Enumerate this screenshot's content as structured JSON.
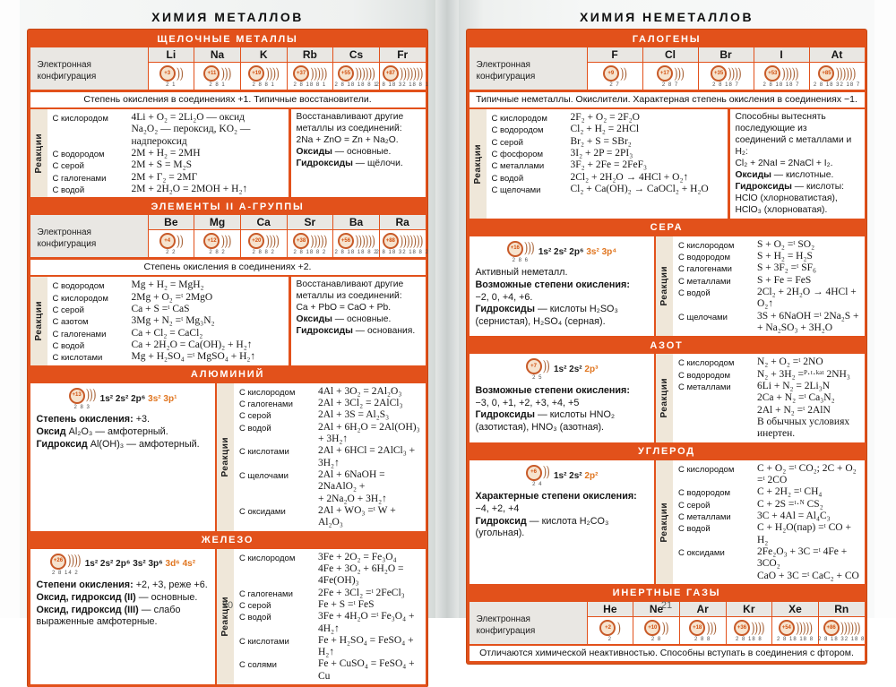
{
  "colors": {
    "accent": "#e2511b",
    "config_highlight": "#e0751f",
    "header_text": "#ffffff",
    "cell_gray": "#e9e7e3",
    "strip_beige": "#efe7d9"
  },
  "left_page": {
    "title": "ХИМИЯ МЕТАЛЛОВ",
    "page_number": "20",
    "config_label": "Электронная конфигурация",
    "reactions_label": "Реакции",
    "alkali": {
      "header": "ЩЕЛОЧНЫЕ МЕТАЛЛЫ",
      "elements": [
        {
          "symbol": "Li",
          "charge": "+3",
          "shells": "2 1"
        },
        {
          "symbol": "Na",
          "charge": "+11",
          "shells": "2 8 1"
        },
        {
          "symbol": "K",
          "charge": "+19",
          "shells": "2 8 8 1"
        },
        {
          "symbol": "Rb",
          "charge": "+37",
          "shells": "2 8 18 8 1"
        },
        {
          "symbol": "Cs",
          "charge": "+55",
          "shells": "2 8 18 18 8 1"
        },
        {
          "symbol": "Fr",
          "charge": "+87",
          "shells": "2 8 18 32 18 8 1"
        }
      ],
      "note": "Степень окисления в соединениях +1. Типичные восстановители.",
      "reactions": [
        {
          "label": "С кислородом",
          "eq": "4Li + O₂ = 2Li₂O — оксид\nNa₂O₂ — пероксид, KO₂ — надпероксид"
        },
        {
          "label": "С водородом",
          "eq": "2M + H₂ = 2MH"
        },
        {
          "label": "С серой",
          "eq": "2M + S = M₂S"
        },
        {
          "label": "С галогенами",
          "eq": "2M + Г₂ = 2МГ"
        },
        {
          "label": "С водой",
          "eq": "2M + 2H₂O = 2MOH + H₂↑"
        }
      ],
      "side": [
        {
          "bold": "",
          "rest": "Восстанавливают другие металлы из соединений:"
        },
        {
          "bold": "",
          "rest": "2Na + ZnO = Zn + Na₂O."
        },
        {
          "bold": "Оксиды",
          "rest": " — основные."
        },
        {
          "bold": "Гидроксиды",
          "rest": " — щёлочи."
        }
      ]
    },
    "group2": {
      "header": "ЭЛЕМЕНТЫ II А-ГРУППЫ",
      "elements": [
        {
          "symbol": "Be",
          "charge": "+4",
          "shells": "2 2"
        },
        {
          "symbol": "Mg",
          "charge": "+12",
          "shells": "2 8 2"
        },
        {
          "symbol": "Ca",
          "charge": "+20",
          "shells": "2 8 8 2"
        },
        {
          "symbol": "Sr",
          "charge": "+38",
          "shells": "2 8 18 8 2"
        },
        {
          "symbol": "Ba",
          "charge": "+56",
          "shells": "2 8 18 18 8 2"
        },
        {
          "symbol": "Ra",
          "charge": "+88",
          "shells": "2 8 18 32 18 8 2"
        }
      ],
      "note": "Степень окисления в соединениях +2.",
      "reactions": [
        {
          "label": "С водородом",
          "eq": "Mg + H₂ = MgH₂"
        },
        {
          "label": "С кислородом",
          "eq": "2Mg + O₂ =ᵗ 2MgO"
        },
        {
          "label": "С серой",
          "eq": "Ca + S =ᵗ CaS"
        },
        {
          "label": "С азотом",
          "eq": "3Mg + N₂ =ᵗ Mg₃N₂"
        },
        {
          "label": "С галогенами",
          "eq": "Ca + Cl₂ = CaCl₂"
        },
        {
          "label": "С водой",
          "eq": "Ca + 2H₂O = Ca(OH)₂ + H₂↑"
        },
        {
          "label": "С кислотами",
          "eq": "Mg + H₂SO₄ =ᵗ MgSO₄ + H₂↑"
        }
      ],
      "side": [
        {
          "bold": "",
          "rest": "Восстанавливают другие металлы из соединений:"
        },
        {
          "bold": "",
          "rest": "Ca + PbO = CaO + Pb."
        },
        {
          "bold": "Оксиды",
          "rest": " — основные."
        },
        {
          "bold": "Гидроксиды",
          "rest": " — основания."
        }
      ]
    },
    "aluminum": {
      "header": "АЛЮМИНИЙ",
      "diagram": {
        "charge": "+13",
        "shells": "2 8 3",
        "config_black": "1s² 2s² 2p⁶",
        "config_orange": "3s² 3p¹"
      },
      "info": [
        {
          "bold": "Степень окисления:",
          "rest": " +3."
        },
        {
          "bold": "Оксид",
          "rest": " Al₂O₃ — амфотерный."
        },
        {
          "bold": "Гидроксид",
          "rest": " Al(OH)₃ — амфотерный."
        }
      ],
      "reactions": [
        {
          "label": "С кислородом",
          "eq": "4Al + 3O₂ = 2Al₂O₃"
        },
        {
          "label": "С галогенами",
          "eq": "2Al + 3Cl₂ = 2AlCl₃"
        },
        {
          "label": "С серой",
          "eq": "2Al + 3S = Al₂S₃"
        },
        {
          "label": "С водой",
          "eq": "2Al + 6H₂O = 2Al(OH)₃ + 3H₂↑"
        },
        {
          "label": "С кислотами",
          "eq": "2Al + 6HCl = 2AlCl₃ + 3H₂↑"
        },
        {
          "label": "С щелочами",
          "eq": "2Al + 6NaOH = 2NaAlO₂ +\n+ 2Na₂O + 3H₂↑"
        },
        {
          "label": "С оксидами",
          "eq": "2Al + WO₃ =ᵗ W + Al₂O₃"
        }
      ]
    },
    "iron": {
      "header": "ЖЕЛЕЗО",
      "diagram": {
        "charge": "+26",
        "shells": "2 8 14 2",
        "config_black": "1s² 2s² 2p⁶ 3s² 3p⁶",
        "config_orange": "3d⁶ 4s²"
      },
      "info": [
        {
          "bold": "Степени окисления:",
          "rest": " +2, +3, реже +6."
        },
        {
          "bold": "Оксид, гидроксид (II)",
          "rest": " — основные."
        },
        {
          "bold": "Оксид, гидроксид (III)",
          "rest": " — слабо выраженные амфотерные."
        }
      ],
      "reactions": [
        {
          "label": "С кислородом",
          "eq": "3Fe + 2O₂ = Fe₃O₄\n4Fe + 3O₂ + 6H₂O = 4Fe(OH)₃"
        },
        {
          "label": "С галогенами",
          "eq": "2Fe + 3Cl₂ =ᵗ 2FeCl₃"
        },
        {
          "label": "С серой",
          "eq": "Fe + S =ᵗ FeS"
        },
        {
          "label": "С водой",
          "eq": "3Fe + 4H₂O =ᵗ Fe₃O₄ + 4H₂↑"
        },
        {
          "label": "С кислотами",
          "eq": "Fe + H₂SO₄ = FeSO₄ + H₂↑"
        },
        {
          "label": "С солями",
          "eq": "Fe + CuSO₄ = FeSO₄ + Cu"
        }
      ]
    }
  },
  "right_page": {
    "title": "ХИМИЯ НЕМЕТАЛЛОВ",
    "page_number": "21",
    "config_label": "Электронная конфигурация",
    "reactions_label": "Реакции",
    "halogens": {
      "header": "ГАЛОГЕНЫ",
      "elements": [
        {
          "symbol": "F",
          "charge": "+9",
          "shells": "2 7"
        },
        {
          "symbol": "Cl",
          "charge": "+17",
          "shells": "2 8 7"
        },
        {
          "symbol": "Br",
          "charge": "+35",
          "shells": "2 8 18 7"
        },
        {
          "symbol": "I",
          "charge": "+53",
          "shells": "2 8 18 18 7"
        },
        {
          "symbol": "At",
          "charge": "+85",
          "shells": "2 8 18 32 18 7"
        }
      ],
      "note": "Типичные неметаллы. Окислители. Характерная степень окисления в соединениях −1.",
      "reactions": [
        {
          "label": "С кислородом",
          "eq": "2F₂ + O₂ = 2F₂O"
        },
        {
          "label": "С водородом",
          "eq": "Cl₂ + H₂ = 2HCl"
        },
        {
          "label": "С серой",
          "eq": "Br₂ + S = SBr₂"
        },
        {
          "label": "С фосфором",
          "eq": "3I₂ + 2P = 2PI₃"
        },
        {
          "label": "С металлами",
          "eq": "3F₂ + 2Fe = 2FeF₃"
        },
        {
          "label": "С водой",
          "eq": "2Cl₂ + 2H₂O → 4HCl + O₂↑"
        },
        {
          "label": "С щелочами",
          "eq": "Cl₂ + Ca(OH)₂ → CaOCl₂ + H₂O"
        }
      ],
      "side": [
        {
          "bold": "",
          "rest": "Способны вытеснять последующие из соединений с металлами и H₂:"
        },
        {
          "bold": "",
          "rest": "Cl₂ + 2NaI = 2NaCl + I₂."
        },
        {
          "bold": "Оксиды",
          "rest": " — кислотные."
        },
        {
          "bold": "Гидроксиды",
          "rest": " — кислоты:"
        },
        {
          "bold": "",
          "rest": "HClO (хлорноватистая),"
        },
        {
          "bold": "",
          "rest": "HClO₃ (хлорноватая)."
        }
      ]
    },
    "sulfur": {
      "header": "СЕРА",
      "diagram": {
        "charge": "+16",
        "shells": "2 8 6",
        "config_black": "1s² 2s² 2p⁶",
        "config_orange": "3s² 3p⁴"
      },
      "info": [
        {
          "bold": "",
          "rest": "Активный неметалл."
        },
        {
          "bold": "Возможные степени окисления:",
          "rest": ""
        },
        {
          "bold": "",
          "rest": "−2, 0, +4, +6."
        },
        {
          "bold": "Гидроксиды",
          "rest": " — кислоты H₂SO₃ (сернистая), H₂SO₄ (серная)."
        }
      ],
      "reactions": [
        {
          "label": "С кислородом",
          "eq": "S + O₂ =ᵗ SO₂"
        },
        {
          "label": "С водородом",
          "eq": "S + H₂ = H₂S"
        },
        {
          "label": "С галогенами",
          "eq": "S + 3F₂ =ᵗ SF₆"
        },
        {
          "label": "С металлами",
          "eq": "S + Fe = FeS"
        },
        {
          "label": "С водой",
          "eq": "2Cl₂ + 2H₂O → 4HCl + O₂↑"
        },
        {
          "label": "С щелочами",
          "eq": "3S + 6NaOH =ᵗ 2Na₂S +\n+ Na₂SO₃ + 3H₂O"
        }
      ]
    },
    "nitrogen": {
      "header": "АЗОТ",
      "diagram": {
        "charge": "+7",
        "shells": "2 5",
        "config_black": "1s² 2s²",
        "config_orange": "2p³"
      },
      "info": [
        {
          "bold": "Возможные степени окисления:",
          "rest": ""
        },
        {
          "bold": "",
          "rest": "−3, 0, +1, +2, +3, +4, +5"
        },
        {
          "bold": "Гидроксиды",
          "rest": " — кислоты HNO₂ (азотистая), HNO₃ (азотная)."
        }
      ],
      "reactions": [
        {
          "label": "С кислородом",
          "eq": "N₂ + O₂ =ᵗ 2NO"
        },
        {
          "label": "С водородом",
          "eq": "N₂ + 3H₂ =ᴾ·ᵗ·ᵏᵃᵗ 2NH₃"
        },
        {
          "label": "С металлами",
          "eq": "6Li + N₂ = 2Li₃N\n2Ca + N₂ =ᵗ Ca₃N₂\n2Al + N₂ =ᵗ 2AlN\nВ обычных условиях инертен."
        }
      ]
    },
    "carbon": {
      "header": "УГЛЕРОД",
      "diagram": {
        "charge": "+6",
        "shells": "2 4",
        "config_black": "1s² 2s²",
        "config_orange": "2p²"
      },
      "info": [
        {
          "bold": "Характерные степени окисления:",
          "rest": ""
        },
        {
          "bold": "",
          "rest": "−4, +2, +4"
        },
        {
          "bold": "Гидроксид",
          "rest": " — кислота H₂CO₃ (угольная)."
        }
      ],
      "reactions": [
        {
          "label": "С кислородом",
          "eq": "C + O₂ =ᵗ CO₂; 2C + O₂ =ᵗ 2CO"
        },
        {
          "label": "С водородом",
          "eq": "C + 2H₂ =ᵗ CH₄"
        },
        {
          "label": "С серой",
          "eq": "C + 2S =ᵗ·ᴺ CS₂"
        },
        {
          "label": "С металлами",
          "eq": "3C + 4Al = Al₄C₃"
        },
        {
          "label": "С водой",
          "eq": "C + H₂O(пар) =ᵗ CO + H₂"
        },
        {
          "label": "С оксидами",
          "eq": "2Fe₂O₃ + 3C =ᵗ 4Fe + 3CO₂\nCaO + 3C =ᵗ CaC₂ + CO"
        }
      ]
    },
    "inert": {
      "header": "ИНЕРТНЫЕ ГАЗЫ",
      "elements": [
        {
          "symbol": "He",
          "charge": "+2",
          "shells": "2"
        },
        {
          "symbol": "Ne",
          "charge": "+10",
          "shells": "2 8"
        },
        {
          "symbol": "Ar",
          "charge": "+18",
          "shells": "2 8 8"
        },
        {
          "symbol": "Kr",
          "charge": "+36",
          "shells": "2 8 18 8"
        },
        {
          "symbol": "Xe",
          "charge": "+54",
          "shells": "2 8 18 18 8"
        },
        {
          "symbol": "Rn",
          "charge": "+86",
          "shells": "2 8 18 32 18 8"
        }
      ],
      "note": "Отличаются химической неактивностью. Способны вступать в соединения с фтором."
    }
  }
}
